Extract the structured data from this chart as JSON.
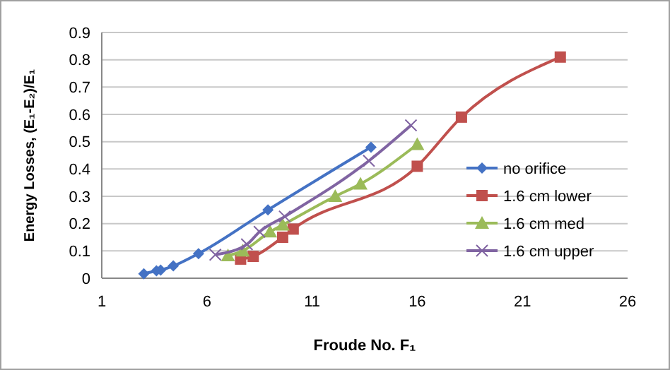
{
  "chart_data": {
    "type": "line",
    "xlabel": "Froude No. F₁",
    "ylabel": "Energy Losses, (E₁-E₂)/E₁",
    "xlim": [
      1,
      26
    ],
    "xticks": [
      1,
      6,
      11,
      16,
      21,
      26
    ],
    "ylim": [
      0,
      0.9
    ],
    "yticks": [
      0,
      0.1,
      0.2,
      0.3,
      0.4,
      0.5,
      0.6,
      0.7,
      0.8,
      0.9
    ],
    "grid": "y",
    "legend": "right",
    "series": [
      {
        "name": "no orifice",
        "color": "#4472c4",
        "marker": "diamond",
        "x": [
          3.0,
          3.6,
          3.8,
          4.4,
          5.6,
          8.9,
          13.8
        ],
        "values": [
          0.016,
          0.027,
          0.03,
          0.045,
          0.09,
          0.25,
          0.48
        ]
      },
      {
        "name": "1.6 cm lower",
        "color": "#c0504d",
        "marker": "square",
        "x": [
          7.6,
          8.2,
          9.6,
          10.1,
          16.0,
          18.1,
          22.8
        ],
        "values": [
          0.07,
          0.08,
          0.15,
          0.18,
          0.41,
          0.59,
          0.81
        ]
      },
      {
        "name": "1.6 cm med",
        "color": "#9bbb59",
        "marker": "triangle",
        "x": [
          7.0,
          7.7,
          9.0,
          9.6,
          12.1,
          13.3,
          16.0
        ],
        "values": [
          0.083,
          0.1,
          0.17,
          0.195,
          0.3,
          0.345,
          0.49
        ]
      },
      {
        "name": "1.6 cm upper",
        "color": "#8064a2",
        "marker": "cross",
        "x": [
          6.4,
          7.9,
          8.5,
          9.7,
          13.7,
          15.7
        ],
        "values": [
          0.086,
          0.124,
          0.17,
          0.226,
          0.43,
          0.56
        ]
      }
    ]
  }
}
